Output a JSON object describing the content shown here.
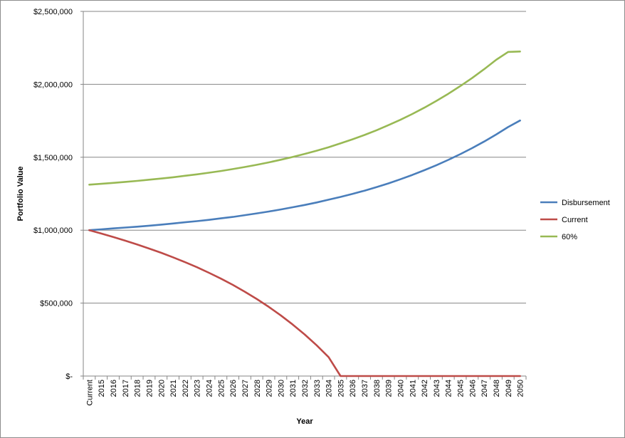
{
  "chart_data": {
    "type": "line",
    "title": "",
    "xlabel": "Year",
    "ylabel": "Portfolio Value",
    "ylim": [
      0,
      2500000
    ],
    "y_ticks": [
      {
        "value": 0,
        "label": "$-"
      },
      {
        "value": 500000,
        "label": "$500,000"
      },
      {
        "value": 1000000,
        "label": "$1,000,000"
      },
      {
        "value": 1500000,
        "label": "$1,500,000"
      },
      {
        "value": 2000000,
        "label": "$2,000,000"
      },
      {
        "value": 2500000,
        "label": "$2,500,000"
      }
    ],
    "grid": "horizontal",
    "legend_position": "right",
    "categories": [
      "Current",
      "2015",
      "2016",
      "2017",
      "2018",
      "2019",
      "2020",
      "2021",
      "2022",
      "2023",
      "2024",
      "2025",
      "2026",
      "2027",
      "2028",
      "2029",
      "2030",
      "2031",
      "2032",
      "2033",
      "2034",
      "2035",
      "2036",
      "2037",
      "2038",
      "2039",
      "2040",
      "2041",
      "2042",
      "2043",
      "2044",
      "2045",
      "2046",
      "2047",
      "2048",
      "2049",
      "2050"
    ],
    "series": [
      {
        "name": "Disbursement",
        "color": "#4a7ebb",
        "values": [
          1000000,
          1006000,
          1012000,
          1018000,
          1024000,
          1031000,
          1038000,
          1046000,
          1054000,
          1062000,
          1071000,
          1081000,
          1091000,
          1103000,
          1115000,
          1128000,
          1142000,
          1157000,
          1173000,
          1190000,
          1209000,
          1228000,
          1249000,
          1271000,
          1295000,
          1321000,
          1349000,
          1379000,
          1411000,
          1445000,
          1482000,
          1521000,
          1563000,
          1608000,
          1656000,
          1707000,
          1752000
        ]
      },
      {
        "name": "Current",
        "color": "#be4b48",
        "values": [
          1000000,
          977000,
          953000,
          928000,
          902000,
          874000,
          845000,
          814000,
          781000,
          746000,
          708000,
          668000,
          625000,
          578000,
          528000,
          474000,
          416000,
          353000,
          285000,
          211000,
          130000,
          0,
          0,
          0,
          0,
          0,
          0,
          0,
          0,
          0,
          0,
          0,
          0,
          0,
          0,
          0,
          0
        ]
      },
      {
        "name": "60%",
        "color": "#98b954",
        "values": [
          1312000,
          1318000,
          1324000,
          1331000,
          1338000,
          1346000,
          1354000,
          1363000,
          1373000,
          1383000,
          1394000,
          1406000,
          1419000,
          1433000,
          1448000,
          1465000,
          1483000,
          1502000,
          1523000,
          1545000,
          1569000,
          1595000,
          1623000,
          1653000,
          1685000,
          1720000,
          1757000,
          1797000,
          1840000,
          1886000,
          1935000,
          1988000,
          2044000,
          2104000,
          2168000,
          2222000,
          2225000
        ]
      }
    ]
  }
}
